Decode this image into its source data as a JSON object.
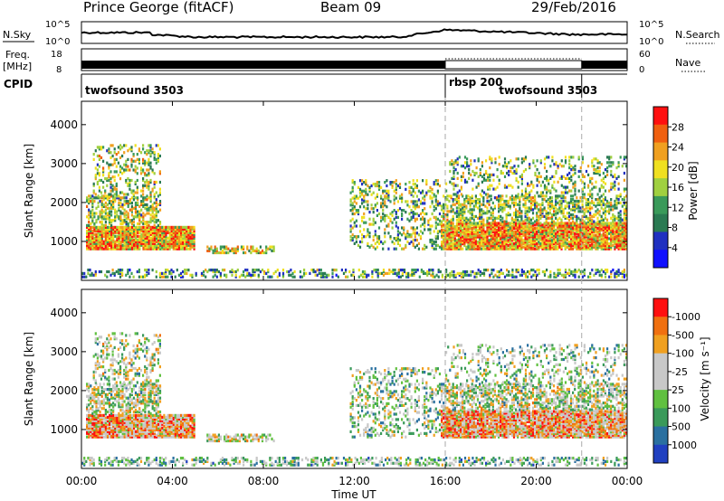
{
  "header": {
    "station": "Prince George (fitACF)",
    "beam": "Beam 09",
    "date": "29/Feb/2016"
  },
  "colors": {
    "power_scale": [
      "#1010ff",
      "#2030c0",
      "#2a7a52",
      "#3a9a5a",
      "#a0d040",
      "#f0e020",
      "#f0a020",
      "#f06010",
      "#ff1010"
    ],
    "velocity_scale": [
      "#2040c0",
      "#2a70a0",
      "#3a9a5a",
      "#60c040",
      "#c8c8c8",
      "#c8c8c8",
      "#f0a020",
      "#f07010",
      "#ff1010"
    ]
  },
  "top_panels": {
    "nsky_label": "N.Sky",
    "nsky_ticks": [
      "10^5",
      "10^0"
    ],
    "nsearch_label": "N.Search",
    "nsearch_ticks": [
      "10^5",
      "10^0"
    ],
    "freq_label_1": "Freq.",
    "freq_label_2": "[MHz]",
    "freq_ticks": [
      "18",
      "8"
    ],
    "nave_label": "Nave",
    "nave_ticks": [
      "60",
      "0"
    ],
    "cpid_label": "CPID",
    "cpid_entries": [
      {
        "label": "twofsound 3503",
        "start": 0.0
      },
      {
        "label": "rbsp 200",
        "start": 16.0
      },
      {
        "label": "twofsound 3503",
        "start": 18.2
      }
    ],
    "mode_changes_hours": [
      16.0,
      22.0
    ]
  },
  "chart_data": [
    {
      "type": "heatmap",
      "name": "power",
      "ylabel": "Slant Range [km]",
      "xlabel": "Time UT",
      "yticks": [
        "1000",
        "2000",
        "3000",
        "4000"
      ],
      "ylim": [
        0,
        4600
      ],
      "xlim_hours": [
        0,
        24
      ],
      "colorbar_label": "Power [dB]",
      "colorbar_ticks": [
        "4",
        "8",
        "12",
        "16",
        "20",
        "24",
        "28"
      ],
      "colorbar_range": [
        0,
        32
      ]
    },
    {
      "type": "heatmap",
      "name": "velocity",
      "ylabel": "Slant Range [km]",
      "xlabel": "Time UT",
      "yticks": [
        "1000",
        "2000",
        "3000",
        "4000"
      ],
      "ylim": [
        0,
        4600
      ],
      "xlim_hours": [
        0,
        24
      ],
      "colorbar_label": "Velocity [m s⁻¹]",
      "colorbar_ticks": [
        "1000",
        "500",
        "100",
        "25",
        "-25",
        "-100",
        "-500",
        "-1000"
      ]
    }
  ],
  "x_axis": {
    "tick_labels": [
      "00:00",
      "04:00",
      "08:00",
      "12:00",
      "16:00",
      "20:00",
      "00:00"
    ],
    "title": "Time UT"
  }
}
